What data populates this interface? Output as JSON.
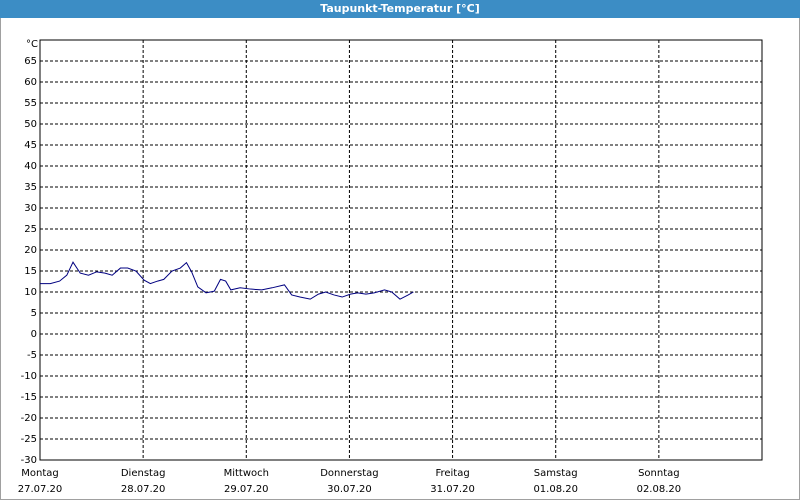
{
  "chart_data": {
    "type": "line",
    "title": "Taupunkt-Temperatur [°C]",
    "y_unit": "°C",
    "x": [
      0,
      0.1,
      0.19,
      0.26,
      0.32,
      0.39,
      0.47,
      0.55,
      0.63,
      0.7,
      0.78,
      0.85,
      0.93,
      1.01,
      1.07,
      1.14,
      1.2,
      1.28,
      1.36,
      1.42,
      1.47,
      1.53,
      1.61,
      1.69,
      1.75,
      1.8,
      1.85,
      1.94,
      2.04,
      2.15,
      2.25,
      2.37,
      2.44,
      2.52,
      2.62,
      2.7,
      2.77,
      2.85,
      2.93,
      3.01,
      3.08,
      3.16,
      3.24,
      3.34,
      3.41,
      3.49,
      3.57,
      3.62
    ],
    "series": [
      {
        "name": "Taupunkt",
        "color": "#000080",
        "values": [
          12,
          12,
          12.6,
          14,
          17.1,
          14.5,
          14,
          14.8,
          14.5,
          14,
          15.7,
          15.7,
          15,
          12.8,
          12,
          12.6,
          13,
          15,
          15.7,
          17,
          14.8,
          11.2,
          9.8,
          10.2,
          13,
          12.6,
          10.5,
          11,
          10.7,
          10.5,
          11,
          11.7,
          9.3,
          8.8,
          8.3,
          9.5,
          10,
          9.3,
          8.8,
          9.5,
          9.8,
          9.5,
          9.8,
          10.5,
          10,
          8.3,
          9.3,
          10
        ]
      }
    ],
    "xlim": [
      0,
      7
    ],
    "xticks": [
      {
        "value": 0,
        "label": "Montag",
        "date": "27.07.20"
      },
      {
        "value": 1,
        "label": "Dienstag",
        "date": "28.07.20"
      },
      {
        "value": 2,
        "label": "Mittwoch",
        "date": "29.07.20"
      },
      {
        "value": 3,
        "label": "Donnerstag",
        "date": "30.07.20"
      },
      {
        "value": 4,
        "label": "Freitag",
        "date": "31.07.20"
      },
      {
        "value": 5,
        "label": "Samstag",
        "date": "01.08.20"
      },
      {
        "value": 6,
        "label": "Sonntag",
        "date": "02.08.20"
      }
    ],
    "ylim": [
      -30,
      70
    ],
    "yticks": [
      -30,
      -25,
      -20,
      -15,
      -10,
      -5,
      0,
      5,
      10,
      15,
      20,
      25,
      30,
      35,
      40,
      45,
      50,
      55,
      60,
      65
    ],
    "grid": true
  }
}
